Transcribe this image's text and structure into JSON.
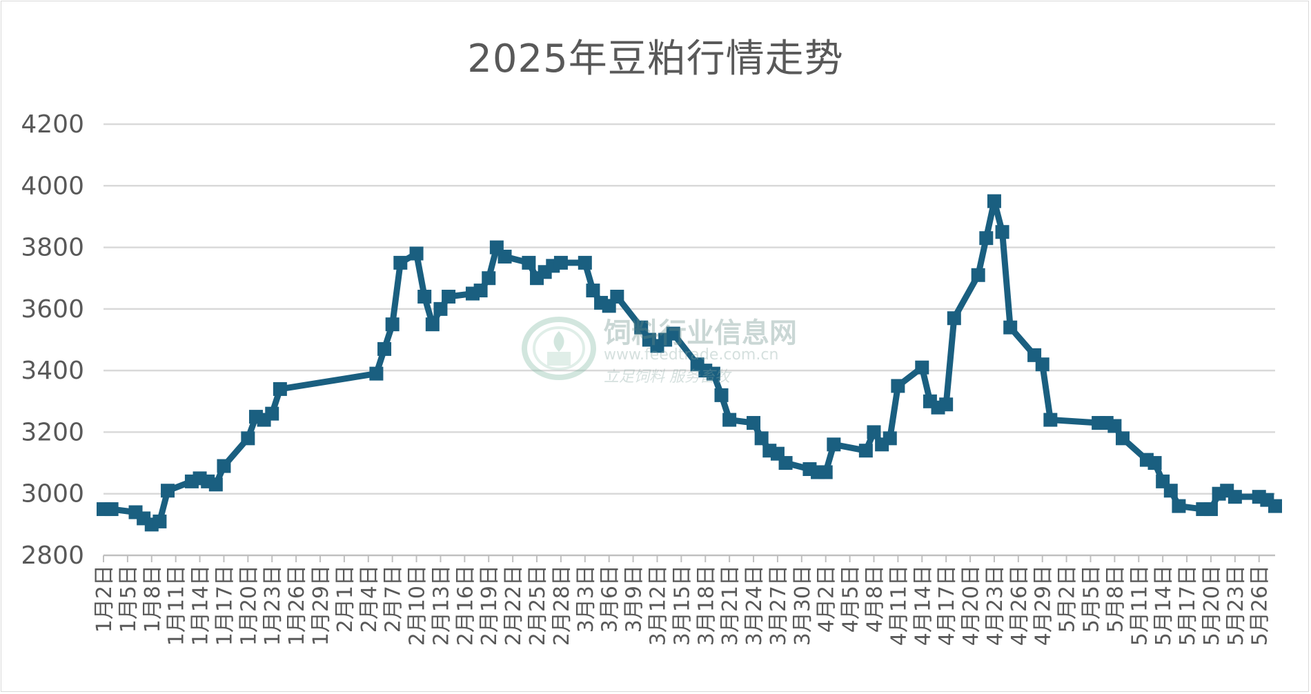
{
  "chart_data": {
    "type": "line",
    "title": "2025年豆粕行情走势",
    "xlabel": "",
    "ylabel": "",
    "ylim": [
      2800,
      4200
    ],
    "yticks": [
      2800,
      3000,
      3200,
      3400,
      3600,
      3800,
      4000,
      4200
    ],
    "grid": true,
    "legend": "none",
    "color": "#1a5f80",
    "marker": "square",
    "x_ticks": [
      "1月2日",
      "1月5日",
      "1月8日",
      "1月11日",
      "1月14日",
      "1月17日",
      "1月20日",
      "1月23日",
      "1月26日",
      "1月29日",
      "2月1日",
      "2月4日",
      "2月7日",
      "2月10日",
      "2月13日",
      "2月16日",
      "2月19日",
      "2月22日",
      "2月25日",
      "2月28日",
      "3月3日",
      "3月6日",
      "3月9日",
      "3月12日",
      "3月15日",
      "3月18日",
      "3月21日",
      "3月24日",
      "3月27日",
      "3月30日",
      "4月2日",
      "4月5日",
      "4月8日",
      "4月11日",
      "4月14日",
      "4月17日",
      "4月20日",
      "4月23日",
      "4月26日",
      "4月29日",
      "5月2日",
      "5月5日",
      "5月8日",
      "5月11日",
      "5月14日",
      "5月17日",
      "5月20日",
      "5月23日",
      "5月26日"
    ],
    "series": [
      {
        "x": [
          "1月2日",
          "1月3日",
          "1月6日",
          "1月7日",
          "1月8日",
          "1月9日",
          "1月10日",
          "1月13日",
          "1月14日",
          "1月15日",
          "1月16日",
          "1月17日",
          "1月20日",
          "1月21日",
          "1月22日",
          "1月23日",
          "1月24日",
          "2月5日",
          "2月6日",
          "2月7日",
          "2月8日",
          "2月10日",
          "2月11日",
          "2月12日",
          "2月13日",
          "2月14日",
          "2月17日",
          "2月18日",
          "2月19日",
          "2月20日",
          "2月21日",
          "2月24日",
          "2月25日",
          "2月26日",
          "2月27日",
          "2月28日",
          "3月3日",
          "3月4日",
          "3月5日",
          "3月6日",
          "3月7日",
          "3月10日",
          "3月11日",
          "3月12日",
          "3月13日",
          "3月14日",
          "3月17日",
          "3月18日",
          "3月19日",
          "3月20日",
          "3月21日",
          "3月24日",
          "3月25日",
          "3月26日",
          "3月27日",
          "3月28日",
          "3月31日",
          "4月1日",
          "4月2日",
          "4月3日",
          "4月7日",
          "4月8日",
          "4月9日",
          "4月10日",
          "4月11日",
          "4月14日",
          "4月15日",
          "4月16日",
          "4月17日",
          "4月18日",
          "4月21日",
          "4月22日",
          "4月23日",
          "4月24日",
          "4月25日",
          "4月28日",
          "4月29日",
          "4月30日",
          "5月6日",
          "5月7日",
          "5月8日",
          "5月9日",
          "5月12日",
          "5月13日",
          "5月14日",
          "5月15日",
          "5月16日",
          "5月19日",
          "5月20日",
          "5月21日",
          "5月22日",
          "5月23日",
          "5月26日",
          "5月27日",
          "5月28日"
        ],
        "values": [
          2950,
          2950,
          2940,
          2920,
          2900,
          2910,
          3010,
          3040,
          3050,
          3040,
          3030,
          3090,
          3180,
          3250,
          3240,
          3260,
          3340,
          3390,
          3470,
          3550,
          3750,
          3780,
          3640,
          3550,
          3600,
          3640,
          3650,
          3660,
          3700,
          3800,
          3770,
          3750,
          3700,
          3720,
          3740,
          3750,
          3750,
          3660,
          3620,
          3610,
          3640,
          3540,
          3500,
          3480,
          3500,
          3520,
          3420,
          3400,
          3390,
          3320,
          3240,
          3230,
          3180,
          3140,
          3130,
          3100,
          3080,
          3070,
          3070,
          3160,
          3140,
          3200,
          3160,
          3180,
          3350,
          3410,
          3300,
          3280,
          3290,
          3570,
          3710,
          3830,
          3950,
          3850,
          3540,
          3450,
          3420,
          3240,
          3230,
          3230,
          3220,
          3180,
          3110,
          3100,
          3040,
          3010,
          2960,
          2950,
          2950,
          3000,
          3010,
          2990,
          2990,
          2980,
          2960
        ]
      }
    ]
  },
  "watermark": {
    "name": "饲料行业信息网",
    "url": "www.feedtrade.com.cn",
    "slogan": "立足饲料 服务畜牧"
  }
}
